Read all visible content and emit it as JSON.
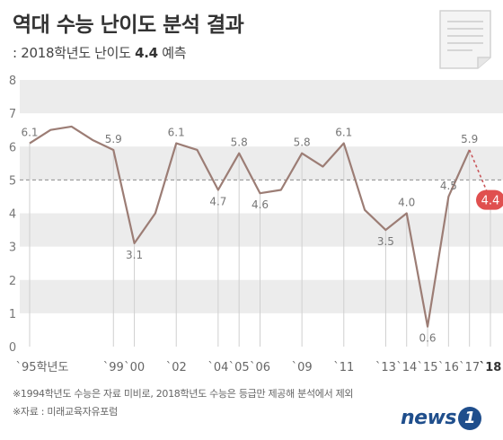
{
  "header": {
    "title": "역대 수능 난이도 분석 결과",
    "subtitle_prefix": ": 2018학년도 난이도 ",
    "subtitle_value": "4.4",
    "subtitle_suffix": " 예측"
  },
  "chart_data": {
    "type": "line",
    "title": "",
    "xlabel": "",
    "ylabel": "",
    "ylim": [
      0,
      8
    ],
    "y_ticks": [
      "0",
      "1",
      "2",
      "3",
      "4",
      "5",
      "6",
      "7",
      "8"
    ],
    "reference_line": 5,
    "x_tick_labels": [
      "`95학년도",
      "`99",
      "`00",
      "`02",
      "`04",
      "`05",
      "`06",
      "`09",
      "`11",
      "`13",
      "`14",
      "`15",
      "`16",
      "`17",
      "`18"
    ],
    "values": [
      6.1,
      6.5,
      6.6,
      6.2,
      5.9,
      3.1,
      4.0,
      6.1,
      5.9,
      4.7,
      5.8,
      4.6,
      4.7,
      5.8,
      5.4,
      6.1,
      4.1,
      3.5,
      4.0,
      0.6,
      4.5,
      5.9,
      4.4
    ],
    "data_labels": [
      "6.1",
      "",
      "",
      "",
      "5.9",
      "3.1",
      "",
      "6.1",
      "",
      "4.7",
      "5.8",
      "4.6",
      "",
      "5.8",
      "",
      "6.1",
      "",
      "3.5",
      "4.0",
      "0.6",
      "4.5",
      "5.9",
      "4.4"
    ],
    "predicted_last": true,
    "colors": {
      "line": "#9c7d75",
      "predicted_marker": "#e0504f",
      "predicted_line": "#c9565a",
      "band": "#ececec",
      "axis_text": "#777777",
      "reference": "#8a8a8a"
    }
  },
  "footnotes": {
    "note1": "※1994학년도 수능은 자료 미비로, 2018학년도 수능은 등급만 제공해 분석에서 제외",
    "note2": "※자료 : 미래교육자유포럼"
  },
  "logo": {
    "text": "news",
    "badge": "1"
  },
  "icons": {
    "document": "document-icon"
  }
}
